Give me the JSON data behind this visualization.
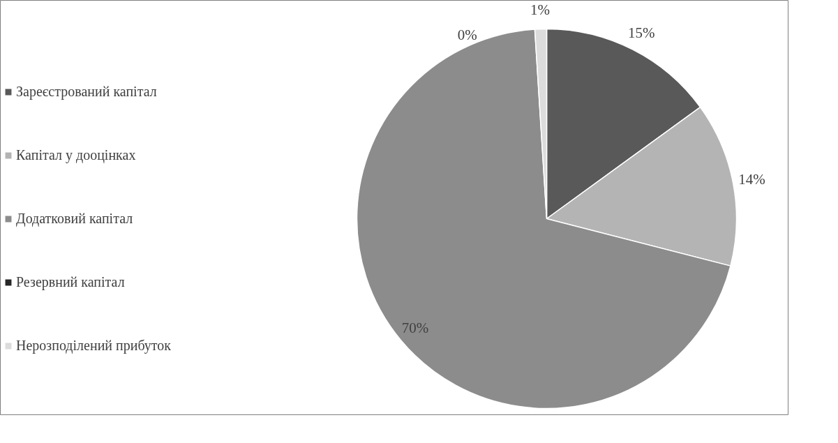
{
  "chart_data": {
    "type": "pie",
    "categories": [
      "Зареєстрований капітал",
      "Капітал у дооцінках",
      "Додатковий капітал",
      "Резервний капітал",
      "Нерозподілений прибуток"
    ],
    "values": [
      15,
      14,
      70,
      0,
      1
    ],
    "value_labels": [
      "15%",
      "14%",
      "70%",
      "0%",
      "1%"
    ],
    "colors": [
      "#595959",
      "#b4b4b4",
      "#8c8c8c",
      "#262626",
      "#dcdcdc"
    ],
    "legend": "left"
  }
}
